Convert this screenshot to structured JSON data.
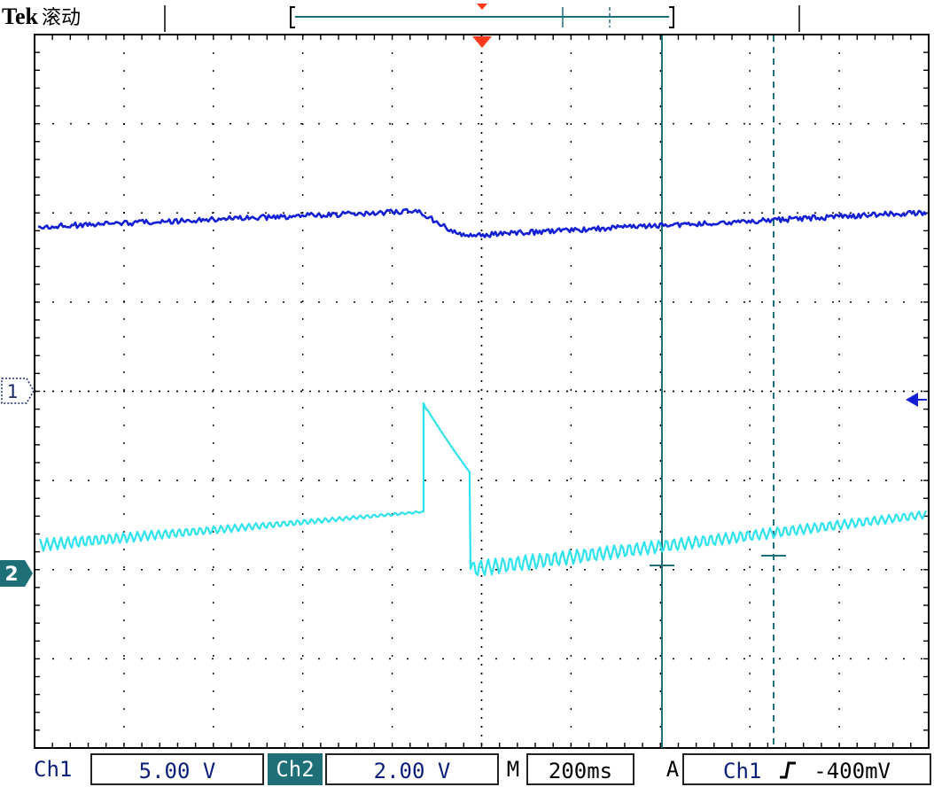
{
  "header": {
    "brand": "Tek",
    "mode": "滚动"
  },
  "status": {
    "ch1_label": "Ch1",
    "ch1_scale": "5.00 V",
    "ch2_label": "Ch2",
    "ch2_scale": "2.00 V",
    "m_label": "M",
    "timebase": "200ms",
    "a_label": "A",
    "trig_source": "Ch1",
    "trig_slope_icon": "rising-edge-icon",
    "trig_level": "-400mV"
  },
  "markers": {
    "ch1": "1",
    "ch2": "2"
  },
  "colors": {
    "ch1": "#1420d6",
    "ch2": "#2ee3ee",
    "ch2_marker": "#1f6f78",
    "trigger": "#ff3a1a",
    "grid": "#000000"
  },
  "display": {
    "divisions_x": 10,
    "divisions_y": 8
  }
}
